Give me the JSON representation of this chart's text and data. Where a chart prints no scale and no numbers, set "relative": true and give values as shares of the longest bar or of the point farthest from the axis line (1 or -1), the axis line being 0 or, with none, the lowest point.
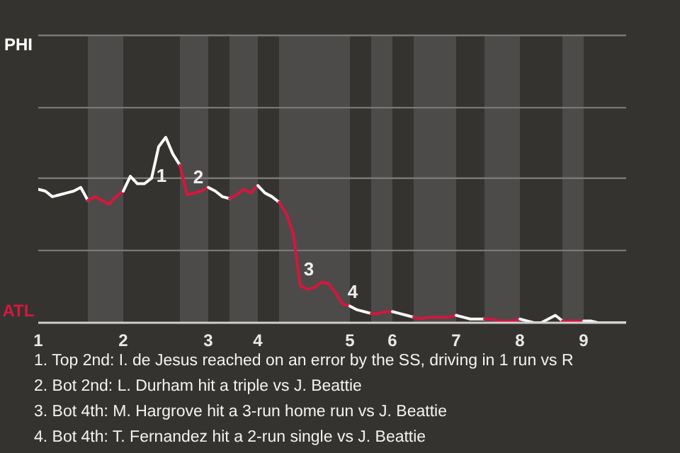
{
  "chart_data": {
    "type": "line",
    "relative": true,
    "categories": [
      "1",
      null,
      null,
      null,
      null,
      null,
      null,
      null,
      null,
      null,
      null,
      null,
      "2",
      null,
      null,
      null,
      null,
      null,
      null,
      null,
      null,
      null,
      null,
      null,
      "3",
      null,
      null,
      null,
      null,
      null,
      null,
      "4",
      null,
      null,
      null,
      null,
      null,
      null,
      null,
      null,
      null,
      null,
      null,
      null,
      "5",
      null,
      null,
      null,
      null,
      null,
      "6",
      null,
      null,
      null,
      null,
      null,
      null,
      null,
      null,
      "7",
      null,
      null,
      null,
      null,
      null,
      null,
      null,
      null,
      "8",
      null,
      null,
      null,
      null,
      null,
      null,
      null,
      null,
      "9",
      null,
      null,
      null,
      null,
      null,
      null
    ],
    "marker": "none",
    "line_style": "solid",
    "ref_lines": [
      {
        "axis": "y",
        "value": 0.39,
        "color": "#7a7876"
      },
      {
        "axis": "y",
        "value": 0.78,
        "color": "#7a7876"
      },
      {
        "axis": "y",
        "value": 1.16,
        "color": "#7a7876"
      },
      {
        "axis": "y",
        "value": 1.55,
        "color": "#7a7876"
      }
    ],
    "series": [
      {
        "color": "#ffffff",
        "values": [
          0.72,
          0.71,
          0.68,
          0.69,
          0.7,
          0.71,
          0.73,
          0.66,
          null,
          null,
          null,
          null,
          null,
          null,
          null,
          null,
          null,
          null,
          null,
          null,
          null,
          null,
          null,
          null,
          null,
          null,
          null,
          null,
          null,
          null,
          null,
          null,
          null,
          null,
          null,
          null,
          null,
          null,
          null,
          null,
          null,
          null,
          null,
          null,
          null,
          null,
          null,
          null,
          null,
          null,
          null,
          null,
          null,
          null,
          null,
          null,
          null,
          null,
          null,
          null,
          null,
          null,
          null,
          null,
          null,
          null,
          null,
          null,
          null,
          null,
          null,
          null,
          null,
          null,
          null,
          null,
          null,
          null,
          null,
          null,
          null,
          null,
          null,
          null
        ]
      },
      {
        "color": "#d6173f",
        "values": [
          null,
          null,
          null,
          null,
          null,
          null,
          null,
          0.66,
          0.68,
          0.66,
          0.64,
          0.68,
          0.71,
          null,
          null,
          null,
          null,
          null,
          null,
          null,
          null,
          null,
          null,
          null,
          null,
          null,
          null,
          null,
          null,
          null,
          null,
          null,
          null,
          null,
          null,
          null,
          null,
          null,
          null,
          null,
          null,
          null,
          null,
          null,
          null,
          null,
          null,
          null,
          null,
          null,
          null,
          null,
          null,
          null,
          null,
          null,
          null,
          null,
          null,
          null,
          null,
          null,
          null,
          null,
          null,
          null,
          null,
          null,
          null,
          null,
          null,
          null,
          null,
          null,
          null,
          null,
          null,
          null,
          null,
          null,
          null,
          null,
          null,
          null
        ]
      },
      {
        "color": "#fefefe",
        "values": [
          null,
          null,
          null,
          null,
          null,
          null,
          null,
          null,
          null,
          null,
          null,
          null,
          0.71,
          0.79,
          0.75,
          0.75,
          0.78,
          0.95,
          1,
          0.91,
          0.85,
          null,
          null,
          null,
          null,
          null,
          null,
          null,
          null,
          null,
          null,
          null,
          null,
          null,
          null,
          null,
          null,
          null,
          null,
          null,
          null,
          null,
          null,
          null,
          null,
          null,
          null,
          null,
          null,
          null,
          null,
          null,
          null,
          null,
          null,
          null,
          null,
          null,
          null,
          null,
          null,
          null,
          null,
          null,
          null,
          null,
          null,
          null,
          null,
          null,
          null,
          null,
          null,
          null,
          null,
          null,
          null,
          null,
          null,
          null,
          null,
          null,
          null,
          null
        ]
      },
      {
        "color": "#d5173f",
        "values": [
          null,
          null,
          null,
          null,
          null,
          null,
          null,
          null,
          null,
          null,
          null,
          null,
          null,
          null,
          null,
          null,
          null,
          null,
          null,
          null,
          0.85,
          0.69,
          0.7,
          0.71,
          0.73,
          null,
          null,
          null,
          null,
          null,
          null,
          null,
          null,
          null,
          null,
          null,
          null,
          null,
          null,
          null,
          null,
          null,
          null,
          null,
          null,
          null,
          null,
          null,
          null,
          null,
          null,
          null,
          null,
          null,
          null,
          null,
          null,
          null,
          null,
          null,
          null,
          null,
          null,
          null,
          null,
          null,
          null,
          null,
          null,
          null,
          null,
          null,
          null,
          null,
          null,
          null,
          null,
          null,
          null,
          null,
          null,
          null,
          null,
          null
        ]
      },
      {
        "color": "#fdfdfd",
        "values": [
          null,
          null,
          null,
          null,
          null,
          null,
          null,
          null,
          null,
          null,
          null,
          null,
          null,
          null,
          null,
          null,
          null,
          null,
          null,
          null,
          null,
          null,
          null,
          null,
          0.73,
          0.71,
          0.68,
          0.67,
          null,
          null,
          null,
          null,
          null,
          null,
          null,
          null,
          null,
          null,
          null,
          null,
          null,
          null,
          null,
          null,
          null,
          null,
          null,
          null,
          null,
          null,
          null,
          null,
          null,
          null,
          null,
          null,
          null,
          null,
          null,
          null,
          null,
          null,
          null,
          null,
          null,
          null,
          null,
          null,
          null,
          null,
          null,
          null,
          null,
          null,
          null,
          null,
          null,
          null,
          null,
          null,
          null,
          null,
          null,
          null
        ]
      },
      {
        "color": "#d4173f",
        "values": [
          null,
          null,
          null,
          null,
          null,
          null,
          null,
          null,
          null,
          null,
          null,
          null,
          null,
          null,
          null,
          null,
          null,
          null,
          null,
          null,
          null,
          null,
          null,
          null,
          null,
          null,
          null,
          0.67,
          0.69,
          0.72,
          0.7,
          0.74,
          null,
          null,
          null,
          null,
          null,
          null,
          null,
          null,
          null,
          null,
          null,
          null,
          null,
          null,
          null,
          null,
          null,
          null,
          null,
          null,
          null,
          null,
          null,
          null,
          null,
          null,
          null,
          null,
          null,
          null,
          null,
          null,
          null,
          null,
          null,
          null,
          null,
          null,
          null,
          null,
          null,
          null,
          null,
          null,
          null,
          null,
          null,
          null,
          null,
          null,
          null,
          null
        ]
      },
      {
        "color": "#fcfcfc",
        "values": [
          null,
          null,
          null,
          null,
          null,
          null,
          null,
          null,
          null,
          null,
          null,
          null,
          null,
          null,
          null,
          null,
          null,
          null,
          null,
          null,
          null,
          null,
          null,
          null,
          null,
          null,
          null,
          null,
          null,
          null,
          null,
          0.74,
          0.7,
          0.68,
          0.65,
          null,
          null,
          null,
          null,
          null,
          null,
          null,
          null,
          null,
          null,
          null,
          null,
          null,
          null,
          null,
          null,
          null,
          null,
          null,
          null,
          null,
          null,
          null,
          null,
          null,
          null,
          null,
          null,
          null,
          null,
          null,
          null,
          null,
          null,
          null,
          null,
          null,
          null,
          null,
          null,
          null,
          null,
          null,
          null,
          null,
          null,
          null,
          null,
          null
        ]
      },
      {
        "color": "#d3173f",
        "values": [
          null,
          null,
          null,
          null,
          null,
          null,
          null,
          null,
          null,
          null,
          null,
          null,
          null,
          null,
          null,
          null,
          null,
          null,
          null,
          null,
          null,
          null,
          null,
          null,
          null,
          null,
          null,
          null,
          null,
          null,
          null,
          null,
          null,
          null,
          0.65,
          0.59,
          0.48,
          0.2,
          0.18,
          0.19,
          0.22,
          0.21,
          0.16,
          0.1,
          0.09,
          null,
          null,
          null,
          null,
          null,
          null,
          null,
          null,
          null,
          null,
          null,
          null,
          null,
          null,
          null,
          null,
          null,
          null,
          null,
          null,
          null,
          null,
          null,
          null,
          null,
          null,
          null,
          null,
          null,
          null,
          null,
          null,
          null,
          null,
          null,
          null,
          null,
          null,
          null
        ]
      },
      {
        "color": "#fbfbfb",
        "values": [
          null,
          null,
          null,
          null,
          null,
          null,
          null,
          null,
          null,
          null,
          null,
          null,
          null,
          null,
          null,
          null,
          null,
          null,
          null,
          null,
          null,
          null,
          null,
          null,
          null,
          null,
          null,
          null,
          null,
          null,
          null,
          null,
          null,
          null,
          null,
          null,
          null,
          null,
          null,
          null,
          null,
          null,
          null,
          null,
          0.09,
          0.07,
          0.06,
          0.05,
          null,
          null,
          null,
          null,
          null,
          null,
          null,
          null,
          null,
          null,
          null,
          null,
          null,
          null,
          null,
          null,
          null,
          null,
          null,
          null,
          null,
          null,
          null,
          null,
          null,
          null,
          null,
          null,
          null,
          null,
          null,
          null,
          null,
          null,
          null,
          null
        ]
      },
      {
        "color": "#d2173f",
        "values": [
          null,
          null,
          null,
          null,
          null,
          null,
          null,
          null,
          null,
          null,
          null,
          null,
          null,
          null,
          null,
          null,
          null,
          null,
          null,
          null,
          null,
          null,
          null,
          null,
          null,
          null,
          null,
          null,
          null,
          null,
          null,
          null,
          null,
          null,
          null,
          null,
          null,
          null,
          null,
          null,
          null,
          null,
          null,
          null,
          null,
          null,
          null,
          0.05,
          0.05,
          0.06,
          0.06,
          null,
          null,
          null,
          null,
          null,
          null,
          null,
          null,
          null,
          null,
          null,
          null,
          null,
          null,
          null,
          null,
          null,
          null,
          null,
          null,
          null,
          null,
          null,
          null,
          null,
          null,
          null,
          null,
          null,
          null,
          null,
          null,
          null
        ]
      },
      {
        "color": "#fafafa",
        "values": [
          null,
          null,
          null,
          null,
          null,
          null,
          null,
          null,
          null,
          null,
          null,
          null,
          null,
          null,
          null,
          null,
          null,
          null,
          null,
          null,
          null,
          null,
          null,
          null,
          null,
          null,
          null,
          null,
          null,
          null,
          null,
          null,
          null,
          null,
          null,
          null,
          null,
          null,
          null,
          null,
          null,
          null,
          null,
          null,
          null,
          null,
          null,
          null,
          null,
          null,
          0.06,
          0.05,
          0.04,
          0.03,
          null,
          null,
          null,
          null,
          null,
          null,
          null,
          null,
          null,
          null,
          null,
          null,
          null,
          null,
          null,
          null,
          null,
          null,
          null,
          null,
          null,
          null,
          null,
          null,
          null,
          null,
          null,
          null,
          null,
          null
        ]
      },
      {
        "color": "#d1173f",
        "values": [
          null,
          null,
          null,
          null,
          null,
          null,
          null,
          null,
          null,
          null,
          null,
          null,
          null,
          null,
          null,
          null,
          null,
          null,
          null,
          null,
          null,
          null,
          null,
          null,
          null,
          null,
          null,
          null,
          null,
          null,
          null,
          null,
          null,
          null,
          null,
          null,
          null,
          null,
          null,
          null,
          null,
          null,
          null,
          null,
          null,
          null,
          null,
          null,
          null,
          null,
          null,
          null,
          null,
          0.03,
          0.02,
          0.03,
          0.03,
          0.03,
          0.03,
          0.04,
          null,
          null,
          null,
          null,
          null,
          null,
          null,
          null,
          null,
          null,
          null,
          null,
          null,
          null,
          null,
          null,
          null,
          null,
          null,
          null,
          null,
          null,
          null,
          null
        ]
      },
      {
        "color": "#f9f9f9",
        "values": [
          null,
          null,
          null,
          null,
          null,
          null,
          null,
          null,
          null,
          null,
          null,
          null,
          null,
          null,
          null,
          null,
          null,
          null,
          null,
          null,
          null,
          null,
          null,
          null,
          null,
          null,
          null,
          null,
          null,
          null,
          null,
          null,
          null,
          null,
          null,
          null,
          null,
          null,
          null,
          null,
          null,
          null,
          null,
          null,
          null,
          null,
          null,
          null,
          null,
          null,
          null,
          null,
          null,
          null,
          null,
          null,
          null,
          null,
          null,
          0.04,
          0.03,
          0.02,
          0.02,
          0.02,
          null,
          null,
          null,
          null,
          null,
          null,
          null,
          null,
          null,
          null,
          null,
          null,
          null,
          null,
          null,
          null,
          null,
          null,
          null,
          null
        ]
      },
      {
        "color": "#d0173f",
        "values": [
          null,
          null,
          null,
          null,
          null,
          null,
          null,
          null,
          null,
          null,
          null,
          null,
          null,
          null,
          null,
          null,
          null,
          null,
          null,
          null,
          null,
          null,
          null,
          null,
          null,
          null,
          null,
          null,
          null,
          null,
          null,
          null,
          null,
          null,
          null,
          null,
          null,
          null,
          null,
          null,
          null,
          null,
          null,
          null,
          null,
          null,
          null,
          null,
          null,
          null,
          null,
          null,
          null,
          null,
          null,
          null,
          null,
          null,
          null,
          null,
          null,
          null,
          null,
          0.02,
          0.02,
          0.01,
          0.01,
          0.01,
          0.02,
          null,
          null,
          null,
          null,
          null,
          null,
          null,
          null,
          null,
          null,
          null,
          null,
          null,
          null,
          null
        ]
      },
      {
        "color": "#f8f8f8",
        "values": [
          null,
          null,
          null,
          null,
          null,
          null,
          null,
          null,
          null,
          null,
          null,
          null,
          null,
          null,
          null,
          null,
          null,
          null,
          null,
          null,
          null,
          null,
          null,
          null,
          null,
          null,
          null,
          null,
          null,
          null,
          null,
          null,
          null,
          null,
          null,
          null,
          null,
          null,
          null,
          null,
          null,
          null,
          null,
          null,
          null,
          null,
          null,
          null,
          null,
          null,
          null,
          null,
          null,
          null,
          null,
          null,
          null,
          null,
          null,
          null,
          null,
          null,
          null,
          null,
          null,
          null,
          null,
          null,
          0.02,
          0.01,
          0,
          0,
          0.02,
          0.04,
          0.01,
          null,
          null,
          null,
          null,
          null,
          null,
          null,
          null,
          null
        ]
      },
      {
        "color": "#cf173f",
        "values": [
          null,
          null,
          null,
          null,
          null,
          null,
          null,
          null,
          null,
          null,
          null,
          null,
          null,
          null,
          null,
          null,
          null,
          null,
          null,
          null,
          null,
          null,
          null,
          null,
          null,
          null,
          null,
          null,
          null,
          null,
          null,
          null,
          null,
          null,
          null,
          null,
          null,
          null,
          null,
          null,
          null,
          null,
          null,
          null,
          null,
          null,
          null,
          null,
          null,
          null,
          null,
          null,
          null,
          null,
          null,
          null,
          null,
          null,
          null,
          null,
          null,
          null,
          null,
          null,
          null,
          null,
          null,
          null,
          null,
          null,
          null,
          null,
          null,
          null,
          0.01,
          0.01,
          0.01,
          0.01,
          null,
          null,
          null,
          null,
          null,
          null
        ]
      },
      {
        "color": "#f7f7f7",
        "values": [
          null,
          null,
          null,
          null,
          null,
          null,
          null,
          null,
          null,
          null,
          null,
          null,
          null,
          null,
          null,
          null,
          null,
          null,
          null,
          null,
          null,
          null,
          null,
          null,
          null,
          null,
          null,
          null,
          null,
          null,
          null,
          null,
          null,
          null,
          null,
          null,
          null,
          null,
          null,
          null,
          null,
          null,
          null,
          null,
          null,
          null,
          null,
          null,
          null,
          null,
          null,
          null,
          null,
          null,
          null,
          null,
          null,
          null,
          null,
          null,
          null,
          null,
          null,
          null,
          null,
          null,
          null,
          null,
          null,
          null,
          null,
          null,
          null,
          null,
          null,
          null,
          null,
          0.01,
          0.01,
          0,
          0,
          0,
          0,
          0
        ]
      }
    ],
    "annotations": [
      "PHI",
      "ATL",
      "1",
      "2",
      "3",
      "4",
      "1. Top 2nd: I. de Jesus reached on an error by the SS, driving in 1 run vs R",
      "2. Bot 2nd: L. Durham hit a triple vs J. Beattie",
      "3. Bot 4th: M. Hargrove hit a 3-run home run vs J. Beattie",
      "4. Bot 4th: T. Fernandez hit a 2-run single vs J. Beattie"
    ]
  }
}
